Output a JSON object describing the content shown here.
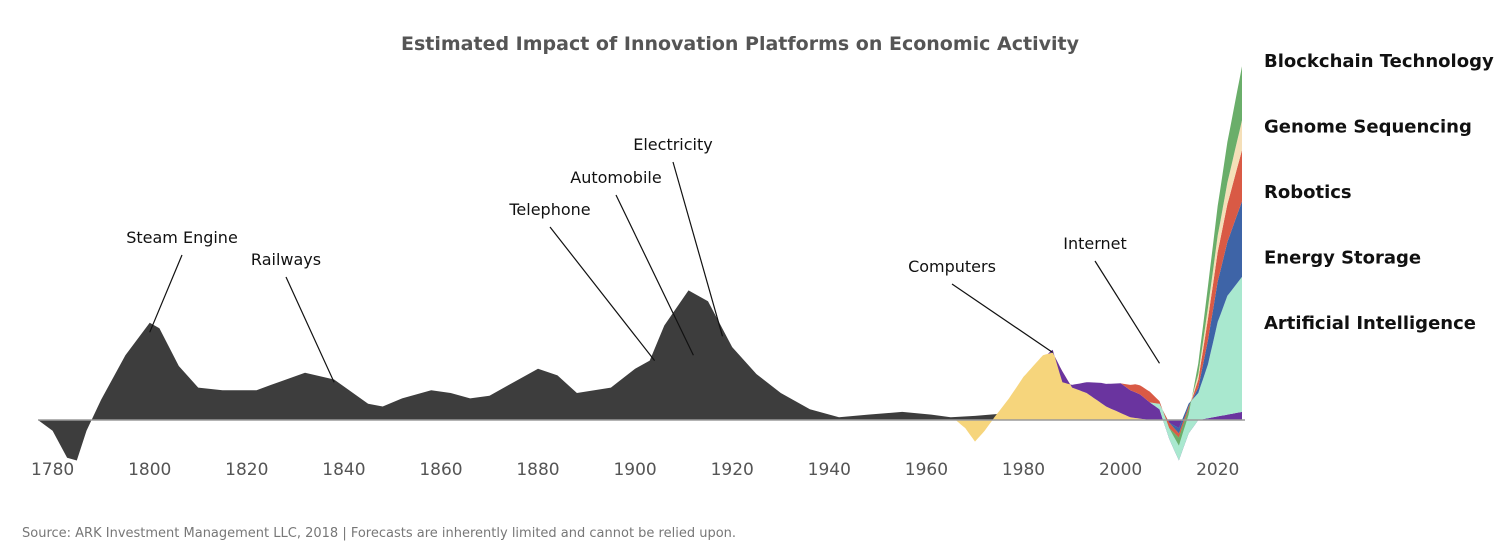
{
  "chart_data": {
    "type": "area",
    "title": "Estimated Impact of Innovation Platforms on Economic Activity",
    "xlim": [
      1777,
      2025
    ],
    "x_ticks": [
      "1780",
      "1800",
      "1820",
      "1840",
      "1860",
      "1880",
      "1900",
      "1920",
      "1940",
      "1960",
      "1980",
      "2000",
      "2020"
    ],
    "y_baseline": 0,
    "historical_series": [
      {
        "name": "Steam Engine",
        "color": "#3d3d3d",
        "points": [
          [
            1777,
            0
          ],
          [
            1780,
            -8
          ],
          [
            1783,
            -28
          ],
          [
            1785,
            -30
          ],
          [
            1787,
            -8
          ],
          [
            1790,
            15
          ],
          [
            1795,
            48
          ],
          [
            1800,
            72
          ],
          [
            1802,
            68
          ],
          [
            1806,
            40
          ],
          [
            1810,
            24
          ],
          [
            1815,
            22
          ],
          [
            1822,
            22
          ],
          [
            1825,
            26
          ],
          [
            1832,
            35
          ],
          [
            1838,
            30
          ],
          [
            1845,
            12
          ],
          [
            1848,
            10
          ],
          [
            1852,
            16
          ],
          [
            1858,
            22
          ],
          [
            1862,
            20
          ],
          [
            1866,
            16
          ],
          [
            1870,
            18
          ],
          [
            1874,
            26
          ],
          [
            1880,
            38
          ],
          [
            1884,
            33
          ],
          [
            1888,
            20
          ],
          [
            1895,
            24
          ],
          [
            1900,
            38
          ],
          [
            1903,
            44
          ],
          [
            1906,
            70
          ],
          [
            1911,
            96
          ],
          [
            1915,
            88
          ],
          [
            1920,
            54
          ],
          [
            1925,
            34
          ],
          [
            1930,
            20
          ],
          [
            1936,
            8
          ],
          [
            1942,
            2
          ],
          [
            1948,
            4
          ],
          [
            1955,
            6
          ],
          [
            1961,
            4
          ],
          [
            1965,
            2
          ],
          [
            1970,
            3
          ],
          [
            1980,
            6
          ],
          [
            1990,
            3
          ],
          [
            2000,
            1
          ],
          [
            2005,
            0
          ]
        ]
      }
    ],
    "stacked_series": [
      {
        "name": "Computers",
        "color": "#f6d57c",
        "points": [
          [
            1966,
            0
          ],
          [
            1968,
            -6
          ],
          [
            1970,
            -16
          ],
          [
            1972,
            -8
          ],
          [
            1974,
            2
          ],
          [
            1977,
            16
          ],
          [
            1980,
            32
          ],
          [
            1984,
            48
          ],
          [
            1986,
            50
          ],
          [
            1988,
            36
          ],
          [
            1990,
            24
          ],
          [
            1993,
            20
          ],
          [
            1997,
            10
          ],
          [
            2002,
            2
          ],
          [
            2006,
            0
          ]
        ]
      },
      {
        "name": "Internet",
        "color": "#6a349f",
        "points": [
          [
            1985,
            0
          ],
          [
            1986,
            2
          ],
          [
            1988,
            -8
          ],
          [
            1990,
            2
          ],
          [
            1993,
            8
          ],
          [
            1996,
            15
          ],
          [
            2000,
            22
          ],
          [
            2004,
            18
          ],
          [
            2008,
            8
          ],
          [
            2010,
            -14
          ],
          [
            2012,
            -30
          ],
          [
            2014,
            -10
          ],
          [
            2016,
            0
          ],
          [
            2025,
            6
          ]
        ]
      },
      {
        "name": "Artificial Intelligence",
        "color": "#a9e8cf",
        "points": [
          [
            2006,
            0
          ],
          [
            2008,
            4
          ],
          [
            2010,
            12
          ],
          [
            2012,
            24
          ],
          [
            2014,
            22
          ],
          [
            2016,
            20
          ],
          [
            2018,
            40
          ],
          [
            2020,
            70
          ],
          [
            2022,
            88
          ],
          [
            2025,
            100
          ]
        ]
      },
      {
        "name": "Energy Storage",
        "color": "#3e64a7",
        "points": [
          [
            2010,
            0
          ],
          [
            2012,
            -4
          ],
          [
            2014,
            -2
          ],
          [
            2016,
            4
          ],
          [
            2018,
            18
          ],
          [
            2020,
            30
          ],
          [
            2022,
            40
          ],
          [
            2025,
            56
          ]
        ]
      },
      {
        "name": "Robotics",
        "color": "#d95a45",
        "points": [
          [
            2000,
            0
          ],
          [
            2003,
            6
          ],
          [
            2006,
            8
          ],
          [
            2008,
            2
          ],
          [
            2010,
            -4
          ],
          [
            2014,
            -2
          ],
          [
            2016,
            6
          ],
          [
            2018,
            16
          ],
          [
            2020,
            22
          ],
          [
            2022,
            28
          ],
          [
            2025,
            38
          ]
        ]
      },
      {
        "name": "Genome Sequencing",
        "color": "#f5dfb8",
        "points": [
          [
            2010,
            0
          ],
          [
            2014,
            0
          ],
          [
            2016,
            4
          ],
          [
            2018,
            8
          ],
          [
            2020,
            12
          ],
          [
            2022,
            16
          ],
          [
            2025,
            22
          ]
        ]
      },
      {
        "name": "Blockchain Technology",
        "color": "#6aae6a",
        "points": [
          [
            2010,
            0
          ],
          [
            2012,
            -6
          ],
          [
            2014,
            -4
          ],
          [
            2016,
            8
          ],
          [
            2018,
            16
          ],
          [
            2020,
            22
          ],
          [
            2022,
            30
          ],
          [
            2025,
            40
          ]
        ]
      }
    ],
    "annotations": [
      {
        "text": "Steam Engine",
        "x": 1800,
        "y": 65
      },
      {
        "text": "Railways",
        "x": 1838,
        "y": 28
      },
      {
        "text": "Telephone",
        "x": 1904,
        "y": 44
      },
      {
        "text": "Automobile",
        "x": 1912,
        "y": 48
      },
      {
        "text": "Electricity",
        "x": 1918,
        "y": 62
      },
      {
        "text": "Computers",
        "x": 1986,
        "y": 50
      },
      {
        "text": "Internet",
        "x": 2008,
        "y": 42
      }
    ],
    "legend": [
      "Blockchain Technology",
      "Genome Sequencing",
      "Robotics",
      "Energy Storage",
      "Artificial Intelligence"
    ],
    "legend_placement": "right",
    "grid": false
  },
  "footer": {
    "source": "Source: ARK Investment Management LLC, 2018 | Forecasts are inherently limited and cannot be relied upon."
  }
}
